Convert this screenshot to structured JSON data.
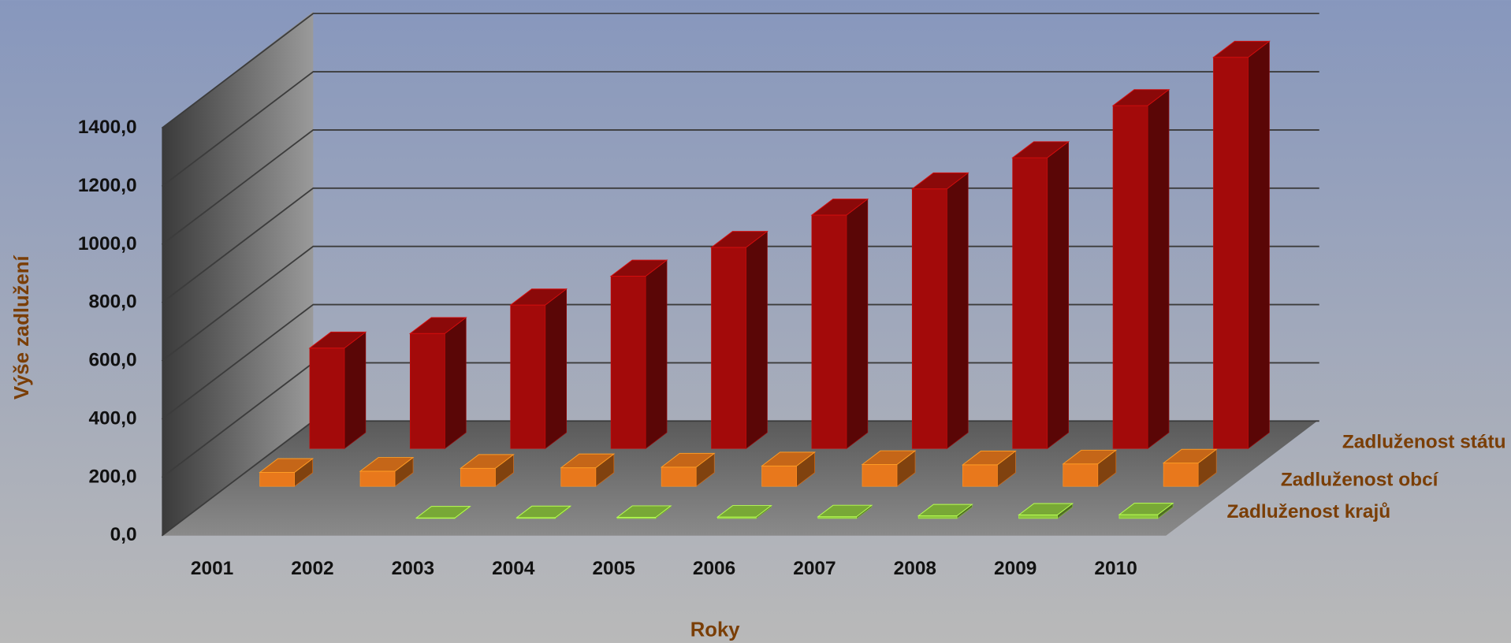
{
  "chart_data": {
    "type": "bar3d",
    "x_label": "Roky",
    "y_label": "Výše zadlužení",
    "categories": [
      "2001",
      "2002",
      "2003",
      "2004",
      "2005",
      "2006",
      "2007",
      "2008",
      "2009",
      "2010"
    ],
    "series": [
      {
        "name": "Zadluženost státu",
        "color": "#a30a0a",
        "values": [
          345,
          395,
          493,
          592,
          691,
          802,
          892,
          999,
          1178,
          1344
        ]
      },
      {
        "name": "Zadluženost obcí",
        "color": "#e8781c",
        "values": [
          48,
          52,
          62,
          64,
          66,
          70,
          75,
          74,
          77,
          80
        ]
      },
      {
        "name": "Zadluženost krajů",
        "color": "#8dc63f",
        "values": [
          null,
          null,
          2,
          3,
          4,
          5,
          6,
          9,
          12,
          13
        ]
      }
    ],
    "ylim": [
      0,
      1400
    ],
    "yticks": [
      {
        "value": 0,
        "label": "0,0"
      },
      {
        "value": 200,
        "label": "200,0"
      },
      {
        "value": 400,
        "label": "400,0"
      },
      {
        "value": 600,
        "label": "600,0"
      },
      {
        "value": 800,
        "label": "800,0"
      },
      {
        "value": 1000,
        "label": "1000,0"
      },
      {
        "value": 1200,
        "label": "1200,0"
      },
      {
        "value": 1400,
        "label": "1400,0"
      }
    ],
    "grid": true
  }
}
